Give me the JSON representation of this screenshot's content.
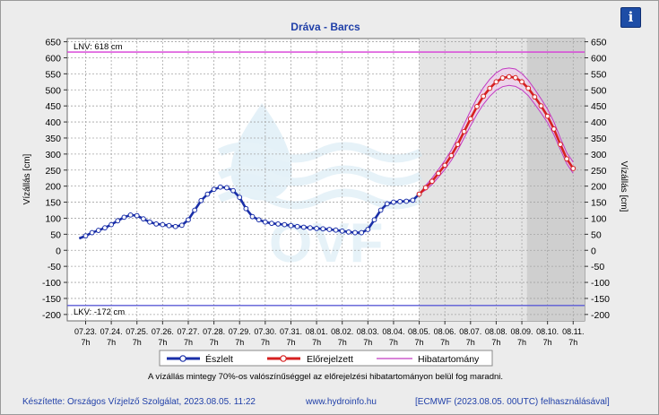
{
  "header": {
    "info_icon": "info-icon",
    "info_glyph": "i"
  },
  "chart_data": {
    "type": "line",
    "title": "Dráva - Barcs",
    "ylabel": "Vízállás [cm]",
    "ylim": [
      -220,
      660
    ],
    "yticks": [
      -200,
      -150,
      -100,
      -50,
      0,
      50,
      100,
      150,
      200,
      250,
      300,
      350,
      400,
      450,
      500,
      550,
      600,
      650
    ],
    "x_dates": [
      "07.23.",
      "07.24.",
      "07.25.",
      "07.26.",
      "07.27.",
      "07.28.",
      "07.29.",
      "07.30.",
      "07.31.",
      "08.01.",
      "08.02.",
      "08.03.",
      "08.04.",
      "08.05.",
      "08.06.",
      "08.07.",
      "08.08.",
      "08.09.",
      "08.10.",
      "08.11."
    ],
    "x_hour": "7h",
    "reference_lines": [
      {
        "label": "LNV: 618 cm",
        "value": 618,
        "color": "#d63ad6"
      },
      {
        "label": "LKV: -172 cm",
        "value": -172,
        "color": "#5b5bd6"
      }
    ],
    "forecast_start_day": 13.0,
    "forecast_dark_from_day": 17.2,
    "forecast_end_day": 19.0,
    "series": [
      {
        "name": "Észlelt",
        "color": "#1a2fa8",
        "x": [
          -0.25,
          0.0,
          0.25,
          0.5,
          0.75,
          1.0,
          1.25,
          1.5,
          1.75,
          2.0,
          2.25,
          2.5,
          2.75,
          3.0,
          3.25,
          3.5,
          3.75,
          4.0,
          4.25,
          4.5,
          4.75,
          5.0,
          5.25,
          5.5,
          5.75,
          6.0,
          6.25,
          6.5,
          6.75,
          7.0,
          7.25,
          7.5,
          7.75,
          8.0,
          8.25,
          8.5,
          8.75,
          9.0,
          9.25,
          9.5,
          9.75,
          10.0,
          10.25,
          10.5,
          10.75,
          11.0,
          11.25,
          11.5,
          11.75,
          12.0,
          12.25,
          12.5,
          12.75,
          13.0
        ],
        "values": [
          37,
          45,
          55,
          62,
          70,
          80,
          92,
          103,
          110,
          108,
          98,
          88,
          82,
          80,
          77,
          74,
          78,
          95,
          125,
          155,
          175,
          190,
          197,
          195,
          186,
          165,
          130,
          105,
          95,
          88,
          84,
          82,
          80,
          77,
          74,
          72,
          70,
          68,
          67,
          65,
          63,
          60,
          57,
          55,
          55,
          65,
          95,
          125,
          145,
          150,
          152,
          153,
          156,
          175
        ]
      },
      {
        "name": "Előrejelzett",
        "color": "#d62020",
        "x": [
          13.0,
          13.25,
          13.5,
          13.75,
          14.0,
          14.25,
          14.5,
          14.75,
          15.0,
          15.25,
          15.5,
          15.75,
          16.0,
          16.25,
          16.5,
          16.75,
          17.0,
          17.25,
          17.5,
          17.75,
          18.0,
          18.25,
          18.5,
          18.75,
          19.0
        ],
        "values": [
          175,
          195,
          215,
          240,
          265,
          295,
          330,
          370,
          410,
          448,
          480,
          505,
          525,
          537,
          541,
          538,
          525,
          505,
          478,
          450,
          418,
          378,
          330,
          285,
          255
        ]
      },
      {
        "name": "Hibatartomány",
        "color": "#c23ac2",
        "x": [
          13.0,
          13.25,
          13.5,
          13.75,
          14.0,
          14.25,
          14.5,
          14.75,
          15.0,
          15.25,
          15.5,
          15.75,
          16.0,
          16.25,
          16.5,
          16.75,
          17.0,
          17.25,
          17.5,
          17.75,
          18.0,
          18.25,
          18.5,
          18.75,
          19.0
        ],
        "upper": [
          175,
          202,
          225,
          252,
          280,
          312,
          350,
          393,
          435,
          474,
          507,
          533,
          553,
          565,
          568,
          565,
          551,
          530,
          502,
          472,
          440,
          400,
          350,
          304,
          275
        ],
        "lower": [
          175,
          188,
          205,
          228,
          252,
          280,
          312,
          350,
          388,
          424,
          455,
          480,
          499,
          510,
          514,
          511,
          500,
          482,
          456,
          428,
          398,
          360,
          314,
          270,
          240
        ]
      }
    ],
    "legend": [
      {
        "label": "Észlelt",
        "color": "#1a2fa8"
      },
      {
        "label": "Előrejelzett",
        "color": "#d62020"
      },
      {
        "label": "Hibatartomány",
        "color": "#c23ac2"
      }
    ],
    "note": "A vízállás mintegy 70%-os valószínűséggel az előrejelzési hibatartományon belül fog maradni."
  },
  "footer": {
    "author": "Készítette: Országos Vízjelző Szolgálat, 2023.08.05. 11:22",
    "website": "www.hydroinfo.hu",
    "source": "[ECMWF (2023.08.05. 00UTC) felhasználásával]"
  },
  "watermark": {
    "text": "OVF"
  }
}
